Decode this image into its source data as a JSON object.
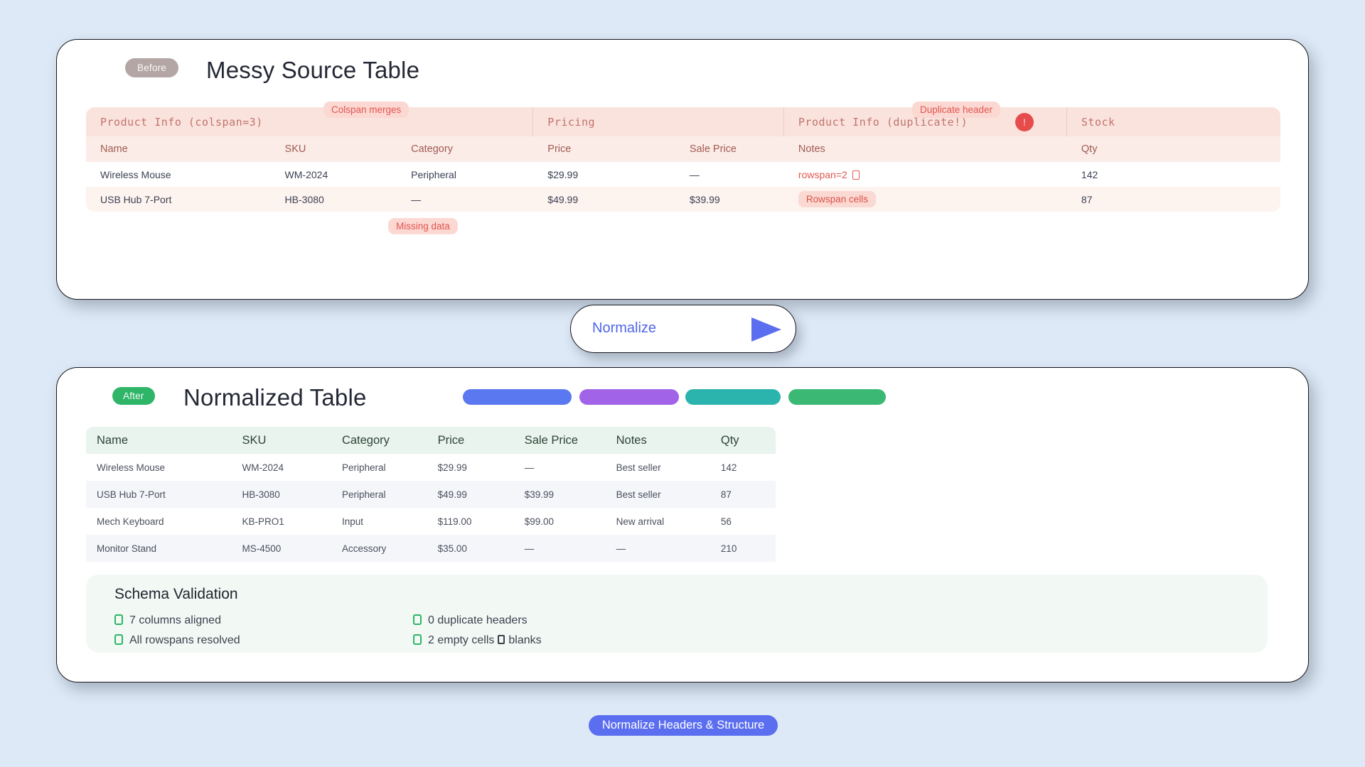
{
  "colors": {
    "page_bg": "#dde9f6",
    "accent_blue": "#5b6ef0",
    "error_red": "#e74c4c",
    "success_green": "#2eb567",
    "legend_pills": [
      "#5a78f0",
      "#a163e8",
      "#2bb3ad",
      "#3bb873"
    ]
  },
  "before_card": {
    "badge": "Before",
    "title": "Messy Source Table",
    "group_headers": [
      "Product Info (colspan=3)",
      "Pricing",
      "Product Info (duplicate!)",
      "Stock"
    ],
    "columns": [
      "Name",
      "SKU",
      "Category",
      "Price",
      "Sale Price",
      "Notes",
      "Qty"
    ],
    "rows": [
      [
        "Wireless Mouse",
        "WM-2024",
        "Peripheral",
        "$29.99",
        "—",
        "rowspan=2",
        "142"
      ],
      [
        "USB Hub 7-Port",
        "HB-3080",
        "—",
        "$49.99",
        "$39.99",
        "Rowspan cells",
        "87"
      ]
    ],
    "annotations": {
      "colspan_merges": "Colspan merges",
      "duplicate_header": "Duplicate header",
      "error_mark": "!",
      "missing_data": "Missing data"
    }
  },
  "normalize_control": {
    "label": "Normalize"
  },
  "after_card": {
    "badge": "After",
    "title": "Normalized Table",
    "columns": [
      "Name",
      "SKU",
      "Category",
      "Price",
      "Sale Price",
      "Notes",
      "Qty"
    ],
    "rows": [
      [
        "Wireless Mouse",
        "WM-2024",
        "Peripheral",
        "$29.99",
        "—",
        "Best seller",
        "142"
      ],
      [
        "USB Hub 7-Port",
        "HB-3080",
        "Peripheral",
        "$49.99",
        "$39.99",
        "Best seller",
        "87"
      ],
      [
        "Mech Keyboard",
        "KB-PRO1",
        "Input",
        "$119.00",
        "$99.00",
        "New arrival",
        "56"
      ],
      [
        "Monitor Stand",
        "MS-4500",
        "Accessory",
        "$35.00",
        "—",
        "—",
        "210"
      ]
    ],
    "validation": {
      "title": "Schema Validation",
      "items": [
        "7 columns aligned",
        "All rowspans resolved",
        "0 duplicate headers"
      ],
      "item4_prefix": "2 empty cells",
      "item4_suffix": "blanks"
    }
  },
  "footer": {
    "button_label": "Normalize Headers & Structure"
  }
}
